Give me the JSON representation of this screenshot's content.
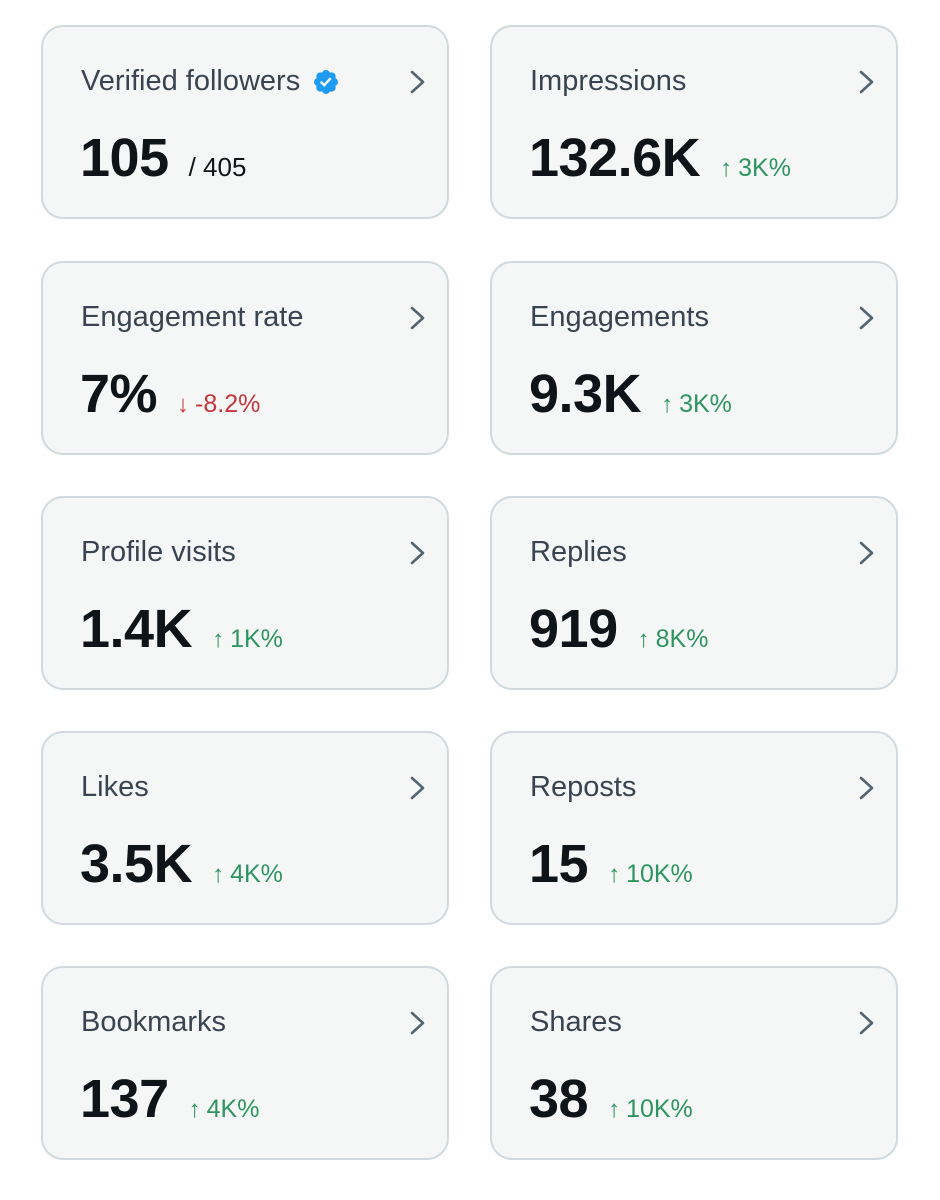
{
  "colors": {
    "card_bg": "#f5f7f7",
    "card_border": "#cfd9de",
    "positive": "#2e9560",
    "negative": "#c8353a",
    "verified_blue": "#1d9bf0",
    "title_text": "#3a4450",
    "value_text": "#0f1419"
  },
  "metrics": [
    {
      "label": "Verified followers",
      "value": "105",
      "sub": "/ 405",
      "has_verified_icon": true
    },
    {
      "label": "Impressions",
      "value": "132.6K",
      "change": "3K%",
      "direction": "up"
    },
    {
      "label": "Engagement rate",
      "value": "7%",
      "change": "-8.2%",
      "direction": "down"
    },
    {
      "label": "Engagements",
      "value": "9.3K",
      "change": "3K%",
      "direction": "up"
    },
    {
      "label": "Profile visits",
      "value": "1.4K",
      "change": "1K%",
      "direction": "up"
    },
    {
      "label": "Replies",
      "value": "919",
      "change": "8K%",
      "direction": "up"
    },
    {
      "label": "Likes",
      "value": "3.5K",
      "change": "4K%",
      "direction": "up"
    },
    {
      "label": "Reposts",
      "value": "15",
      "change": "10K%",
      "direction": "up"
    },
    {
      "label": "Bookmarks",
      "value": "137",
      "change": "4K%",
      "direction": "up"
    },
    {
      "label": "Shares",
      "value": "38",
      "change": "10K%",
      "direction": "up"
    }
  ]
}
